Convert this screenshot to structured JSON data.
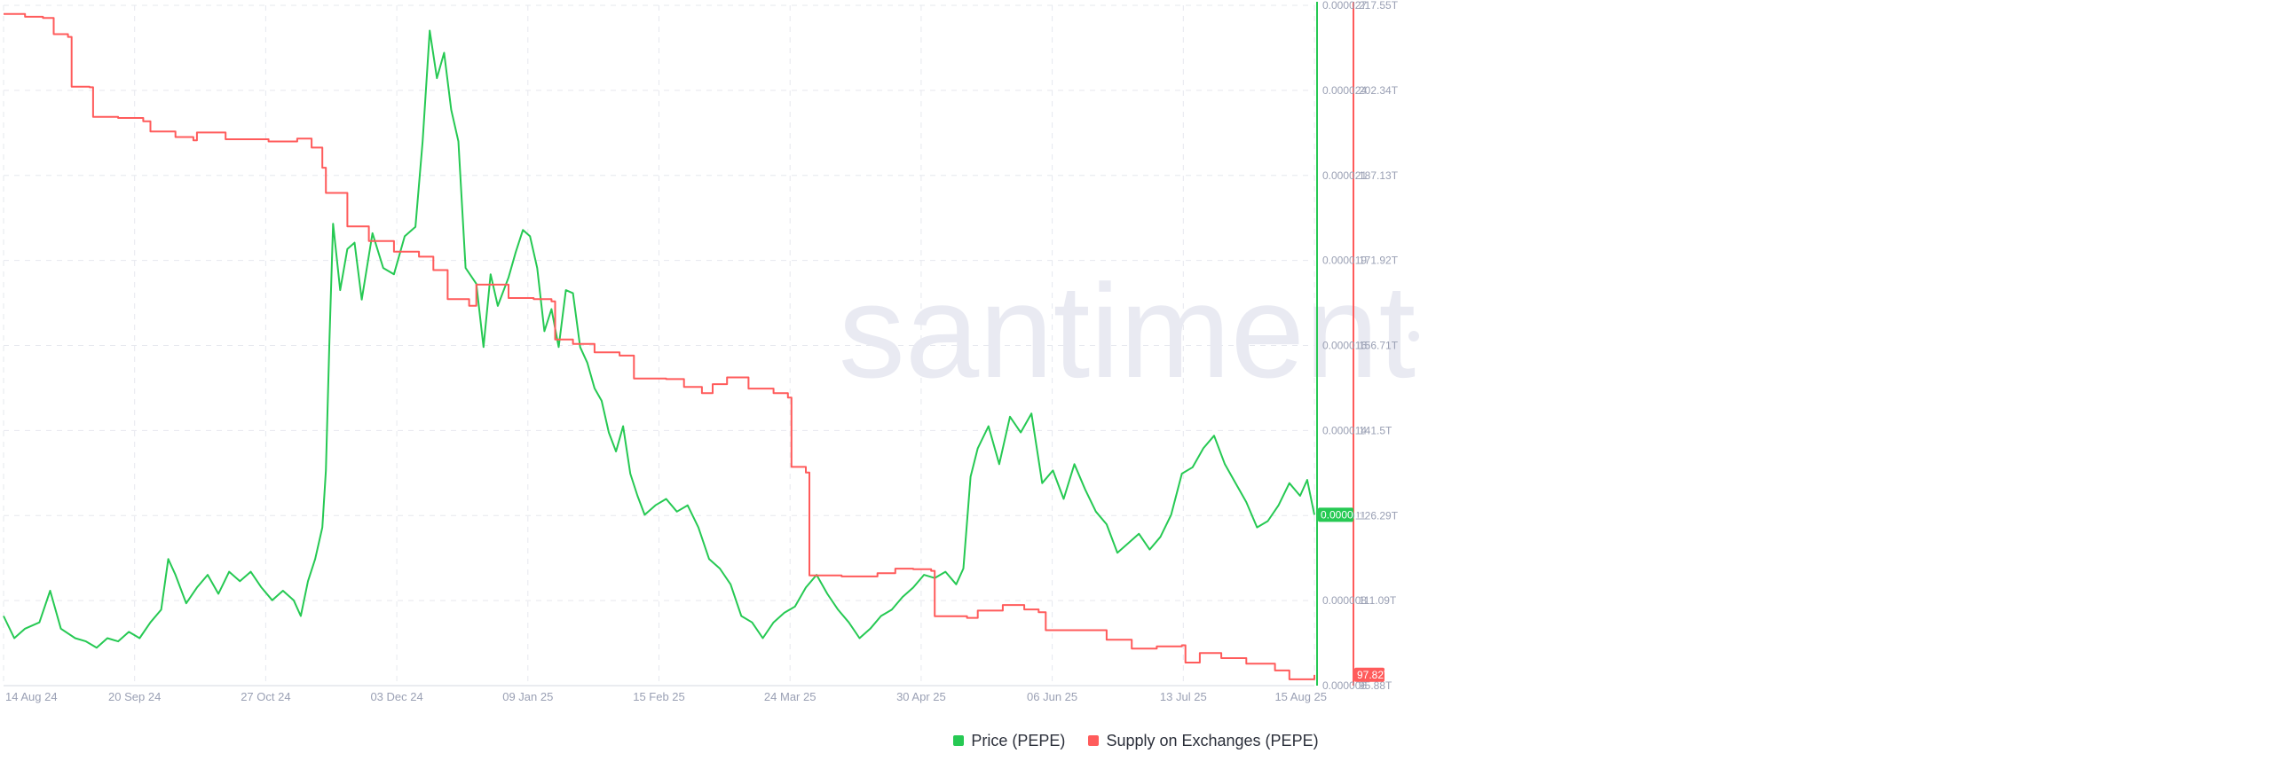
{
  "watermark": "santiment",
  "colors": {
    "price": "#26c953",
    "supply": "#ff5b5b",
    "grid": "#e6e8ee",
    "axis_text": "#9aa0b4"
  },
  "legend": {
    "price_label": "Price (PEPE)",
    "supply_label": "Supply on Exchanges (PEPE)"
  },
  "chart_data": {
    "type": "line",
    "x_start": "2024-08-14",
    "x_end": "2025-08-15",
    "x_ticks": [
      "14 Aug 24",
      "20 Sep 24",
      "27 Oct 24",
      "03 Dec 24",
      "09 Jan 25",
      "15 Feb 25",
      "24 Mar 25",
      "30 Apr 25",
      "06 Jun 25",
      "13 Jul 25",
      "15 Aug 25"
    ],
    "grid": true,
    "legend_position": "bottom-center",
    "y_price": {
      "ticks": [
        "0.000027",
        "0.000024",
        "0.000021",
        "0.000019",
        "0.000016",
        "0.000014",
        "0.000011",
        "0.000008",
        "0.000006"
      ],
      "min": 5.8e-06,
      "max": 2.73e-05,
      "current_label": "0.000011",
      "current_value": 1.12e-05
    },
    "y_supply": {
      "ticks": [
        "217.55T",
        "202.34T",
        "187.13T",
        "171.92T",
        "156.71T",
        "141.5T",
        "126.29T",
        "111.09T",
        "95.88T"
      ],
      "min": 95.88,
      "max": 217.55,
      "current_label": "97.82T",
      "current_value": 97.82
    },
    "series": [
      {
        "name": "Price (PEPE)",
        "axis": "left-price",
        "points": [
          [
            "2024-08-14",
            8e-06
          ],
          [
            "2024-08-17",
            7.3e-06
          ],
          [
            "2024-08-20",
            7.6e-06
          ],
          [
            "2024-08-24",
            7.8e-06
          ],
          [
            "2024-08-27",
            8.8e-06
          ],
          [
            "2024-08-30",
            7.6e-06
          ],
          [
            "2024-09-03",
            7.3e-06
          ],
          [
            "2024-09-06",
            7.2e-06
          ],
          [
            "2024-09-09",
            7e-06
          ],
          [
            "2024-09-12",
            7.3e-06
          ],
          [
            "2024-09-15",
            7.2e-06
          ],
          [
            "2024-09-18",
            7.5e-06
          ],
          [
            "2024-09-21",
            7.3e-06
          ],
          [
            "2024-09-24",
            7.8e-06
          ],
          [
            "2024-09-27",
            8.2e-06
          ],
          [
            "2024-09-29",
            9.8e-06
          ],
          [
            "2024-10-01",
            9.3e-06
          ],
          [
            "2024-10-04",
            8.4e-06
          ],
          [
            "2024-10-07",
            8.9e-06
          ],
          [
            "2024-10-10",
            9.3e-06
          ],
          [
            "2024-10-13",
            8.7e-06
          ],
          [
            "2024-10-16",
            9.4e-06
          ],
          [
            "2024-10-19",
            9.1e-06
          ],
          [
            "2024-10-22",
            9.4e-06
          ],
          [
            "2024-10-25",
            8.9e-06
          ],
          [
            "2024-10-28",
            8.5e-06
          ],
          [
            "2024-10-31",
            8.8e-06
          ],
          [
            "2024-11-03",
            8.5e-06
          ],
          [
            "2024-11-05",
            8e-06
          ],
          [
            "2024-11-07",
            9.1e-06
          ],
          [
            "2024-11-09",
            9.8e-06
          ],
          [
            "2024-11-11",
            1.08e-05
          ],
          [
            "2024-11-12",
            1.26e-05
          ],
          [
            "2024-11-13",
            1.67e-05
          ],
          [
            "2024-11-14",
            2.04e-05
          ],
          [
            "2024-11-16",
            1.83e-05
          ],
          [
            "2024-11-18",
            1.96e-05
          ],
          [
            "2024-11-20",
            1.98e-05
          ],
          [
            "2024-11-22",
            1.8e-05
          ],
          [
            "2024-11-25",
            2.01e-05
          ],
          [
            "2024-11-28",
            1.9e-05
          ],
          [
            "2024-12-01",
            1.88e-05
          ],
          [
            "2024-12-04",
            2e-05
          ],
          [
            "2024-12-07",
            2.03e-05
          ],
          [
            "2024-12-09",
            2.3e-05
          ],
          [
            "2024-12-11",
            2.65e-05
          ],
          [
            "2024-12-13",
            2.5e-05
          ],
          [
            "2024-12-15",
            2.58e-05
          ],
          [
            "2024-12-17",
            2.4e-05
          ],
          [
            "2024-12-19",
            2.3e-05
          ],
          [
            "2024-12-21",
            1.9e-05
          ],
          [
            "2024-12-24",
            1.85e-05
          ],
          [
            "2024-12-26",
            1.65e-05
          ],
          [
            "2024-12-28",
            1.88e-05
          ],
          [
            "2024-12-30",
            1.78e-05
          ],
          [
            "2025-01-02",
            1.87e-05
          ],
          [
            "2025-01-04",
            1.95e-05
          ],
          [
            "2025-01-06",
            2.02e-05
          ],
          [
            "2025-01-08",
            2e-05
          ],
          [
            "2025-01-10",
            1.9e-05
          ],
          [
            "2025-01-12",
            1.7e-05
          ],
          [
            "2025-01-14",
            1.77e-05
          ],
          [
            "2025-01-16",
            1.65e-05
          ],
          [
            "2025-01-18",
            1.83e-05
          ],
          [
            "2025-01-20",
            1.82e-05
          ],
          [
            "2025-01-22",
            1.65e-05
          ],
          [
            "2025-01-24",
            1.6e-05
          ],
          [
            "2025-01-26",
            1.52e-05
          ],
          [
            "2025-01-28",
            1.48e-05
          ],
          [
            "2025-01-30",
            1.38e-05
          ],
          [
            "2025-02-01",
            1.32e-05
          ],
          [
            "2025-02-03",
            1.4e-05
          ],
          [
            "2025-02-05",
            1.25e-05
          ],
          [
            "2025-02-07",
            1.18e-05
          ],
          [
            "2025-02-09",
            1.12e-05
          ],
          [
            "2025-02-12",
            1.15e-05
          ],
          [
            "2025-02-15",
            1.17e-05
          ],
          [
            "2025-02-18",
            1.13e-05
          ],
          [
            "2025-02-21",
            1.15e-05
          ],
          [
            "2025-02-24",
            1.08e-05
          ],
          [
            "2025-02-27",
            9.8e-06
          ],
          [
            "2025-03-02",
            9.5e-06
          ],
          [
            "2025-03-05",
            9e-06
          ],
          [
            "2025-03-08",
            8e-06
          ],
          [
            "2025-03-11",
            7.8e-06
          ],
          [
            "2025-03-14",
            7.3e-06
          ],
          [
            "2025-03-17",
            7.8e-06
          ],
          [
            "2025-03-20",
            8.1e-06
          ],
          [
            "2025-03-23",
            8.3e-06
          ],
          [
            "2025-03-26",
            8.9e-06
          ],
          [
            "2025-03-29",
            9.3e-06
          ],
          [
            "2025-04-01",
            8.7e-06
          ],
          [
            "2025-04-04",
            8.2e-06
          ],
          [
            "2025-04-07",
            7.8e-06
          ],
          [
            "2025-04-10",
            7.3e-06
          ],
          [
            "2025-04-13",
            7.6e-06
          ],
          [
            "2025-04-16",
            8e-06
          ],
          [
            "2025-04-19",
            8.2e-06
          ],
          [
            "2025-04-22",
            8.6e-06
          ],
          [
            "2025-04-25",
            8.9e-06
          ],
          [
            "2025-04-28",
            9.3e-06
          ],
          [
            "2025-05-01",
            9.2e-06
          ],
          [
            "2025-05-04",
            9.4e-06
          ],
          [
            "2025-05-07",
            9e-06
          ],
          [
            "2025-05-09",
            9.5e-06
          ],
          [
            "2025-05-11",
            1.24e-05
          ],
          [
            "2025-05-13",
            1.33e-05
          ],
          [
            "2025-05-16",
            1.4e-05
          ],
          [
            "2025-05-19",
            1.28e-05
          ],
          [
            "2025-05-22",
            1.43e-05
          ],
          [
            "2025-05-25",
            1.38e-05
          ],
          [
            "2025-05-28",
            1.44e-05
          ],
          [
            "2025-05-31",
            1.22e-05
          ],
          [
            "2025-06-03",
            1.26e-05
          ],
          [
            "2025-06-06",
            1.17e-05
          ],
          [
            "2025-06-09",
            1.28e-05
          ],
          [
            "2025-06-12",
            1.2e-05
          ],
          [
            "2025-06-15",
            1.13e-05
          ],
          [
            "2025-06-18",
            1.09e-05
          ],
          [
            "2025-06-21",
            1e-05
          ],
          [
            "2025-06-24",
            1.03e-05
          ],
          [
            "2025-06-27",
            1.06e-05
          ],
          [
            "2025-06-30",
            1.01e-05
          ],
          [
            "2025-07-03",
            1.05e-05
          ],
          [
            "2025-07-06",
            1.12e-05
          ],
          [
            "2025-07-09",
            1.25e-05
          ],
          [
            "2025-07-12",
            1.27e-05
          ],
          [
            "2025-07-15",
            1.33e-05
          ],
          [
            "2025-07-18",
            1.37e-05
          ],
          [
            "2025-07-21",
            1.28e-05
          ],
          [
            "2025-07-24",
            1.22e-05
          ],
          [
            "2025-07-27",
            1.16e-05
          ],
          [
            "2025-07-30",
            1.08e-05
          ],
          [
            "2025-08-02",
            1.1e-05
          ],
          [
            "2025-08-05",
            1.15e-05
          ],
          [
            "2025-08-08",
            1.22e-05
          ],
          [
            "2025-08-11",
            1.18e-05
          ],
          [
            "2025-08-13",
            1.23e-05
          ],
          [
            "2025-08-15",
            1.12e-05
          ]
        ]
      },
      {
        "name": "Supply on Exchanges (PEPE)",
        "axis": "right-supply",
        "points": [
          [
            "2024-08-14",
            216.0
          ],
          [
            "2024-08-20",
            215.5
          ],
          [
            "2024-08-25",
            215.3
          ],
          [
            "2024-08-28",
            212.4
          ],
          [
            "2024-09-01",
            211.9
          ],
          [
            "2024-09-02",
            203.0
          ],
          [
            "2024-09-07",
            202.9
          ],
          [
            "2024-09-08",
            197.6
          ],
          [
            "2024-09-15",
            197.4
          ],
          [
            "2024-09-22",
            196.8
          ],
          [
            "2024-09-24",
            195.0
          ],
          [
            "2024-10-01",
            194.0
          ],
          [
            "2024-10-06",
            193.4
          ],
          [
            "2024-10-07",
            194.8
          ],
          [
            "2024-10-15",
            193.6
          ],
          [
            "2024-10-27",
            193.2
          ],
          [
            "2024-11-04",
            193.7
          ],
          [
            "2024-11-08",
            192.1
          ],
          [
            "2024-11-11",
            188.5
          ],
          [
            "2024-11-12",
            184.0
          ],
          [
            "2024-11-18",
            178.0
          ],
          [
            "2024-11-24",
            175.4
          ],
          [
            "2024-12-01",
            173.5
          ],
          [
            "2024-12-08",
            172.6
          ],
          [
            "2024-12-12",
            170.2
          ],
          [
            "2024-12-16",
            165.0
          ],
          [
            "2024-12-22",
            163.8
          ],
          [
            "2024-12-24",
            167.6
          ],
          [
            "2025-01-02",
            165.2
          ],
          [
            "2025-01-09",
            165.0
          ],
          [
            "2025-01-14",
            164.6
          ],
          [
            "2025-01-15",
            157.8
          ],
          [
            "2025-01-20",
            157.0
          ],
          [
            "2025-01-26",
            155.5
          ],
          [
            "2025-02-02",
            154.9
          ],
          [
            "2025-02-06",
            150.8
          ],
          [
            "2025-02-15",
            150.7
          ],
          [
            "2025-02-20",
            149.3
          ],
          [
            "2025-02-25",
            148.2
          ],
          [
            "2025-02-28",
            149.8
          ],
          [
            "2025-03-04",
            151.0
          ],
          [
            "2025-03-10",
            149.0
          ],
          [
            "2025-03-17",
            148.2
          ],
          [
            "2025-03-21",
            147.4
          ],
          [
            "2025-03-22",
            135.0
          ],
          [
            "2025-03-26",
            134.0
          ],
          [
            "2025-03-27",
            115.6
          ],
          [
            "2025-04-05",
            115.4
          ],
          [
            "2025-04-15",
            116.0
          ],
          [
            "2025-04-20",
            116.8
          ],
          [
            "2025-04-25",
            116.7
          ],
          [
            "2025-04-30",
            116.4
          ],
          [
            "2025-05-01",
            108.3
          ],
          [
            "2025-05-10",
            108.0
          ],
          [
            "2025-05-13",
            109.3
          ],
          [
            "2025-05-20",
            110.3
          ],
          [
            "2025-05-26",
            109.5
          ],
          [
            "2025-05-30",
            109.0
          ],
          [
            "2025-06-01",
            105.8
          ],
          [
            "2025-06-10",
            105.8
          ],
          [
            "2025-06-18",
            104.1
          ],
          [
            "2025-06-25",
            102.5
          ],
          [
            "2025-07-02",
            102.9
          ],
          [
            "2025-07-09",
            103.1
          ],
          [
            "2025-07-10",
            100.0
          ],
          [
            "2025-07-14",
            101.7
          ],
          [
            "2025-07-20",
            100.8
          ],
          [
            "2025-07-27",
            99.8
          ],
          [
            "2025-08-04",
            98.6
          ],
          [
            "2025-08-08",
            97.0
          ],
          [
            "2025-08-15",
            97.8
          ]
        ]
      }
    ]
  }
}
